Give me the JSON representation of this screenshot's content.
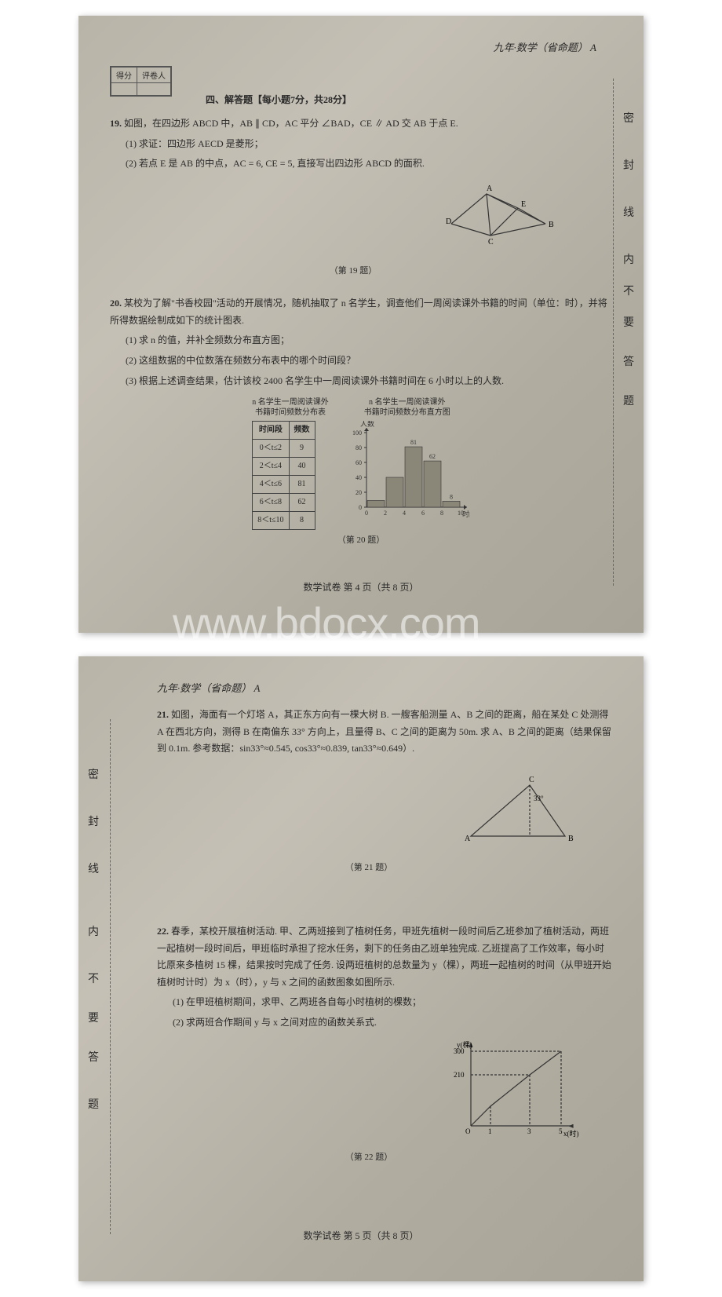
{
  "page1": {
    "header": "九年·数学（省命题）  A",
    "scorebox": {
      "c1": "得分",
      "c2": "评卷人"
    },
    "section_title": "四、解答题【每小题7分，共28分】",
    "q19": {
      "num": "19.",
      "text": "如图，在四边形 ABCD 中，AB ∥ CD，AC 平分 ∠BAD，CE ∥ AD 交 AB 于点 E.",
      "sub1": "(1) 求证：四边形 AECD 是菱形；",
      "sub2": "(2) 若点 E 是 AB 的中点，AC = 6, CE = 5, 直接写出四边形 ABCD 的面积.",
      "caption": "（第 19 题）",
      "figure": {
        "points": {
          "A": "A",
          "B": "B",
          "C": "C",
          "D": "D",
          "E": "E"
        }
      }
    },
    "q20": {
      "num": "20.",
      "text": "某校为了解\"书香校园\"活动的开展情况，随机抽取了 n 名学生，调查他们一周阅读课外书籍的时间（单位：时），并将所得数据绘制成如下的统计图表.",
      "sub1": "(1) 求 n 的值，并补全频数分布直方图；",
      "sub2": "(2) 这组数据的中位数落在频数分布表中的哪个时间段？",
      "sub3": "(3) 根据上述调查结果，估计该校 2400 名学生中一周阅读课外书籍时间在 6 小时以上的人数.",
      "table_title": "n 名学生一周阅读课外\n书籍时间频数分布表",
      "hist_title": "n 名学生一周阅读课外\n书籍时间频数分布直方图",
      "table": {
        "head": {
          "c1": "时间段",
          "c2": "频数"
        },
        "rows": [
          {
            "range": "0＜t≤2",
            "freq": "9"
          },
          {
            "range": "2＜t≤4",
            "freq": "40"
          },
          {
            "range": "4＜t≤6",
            "freq": "81"
          },
          {
            "range": "6＜t≤8",
            "freq": "62"
          },
          {
            "range": "8＜t≤10",
            "freq": "8"
          }
        ]
      },
      "histogram": {
        "y_label": "人数",
        "x_label": "时间",
        "y_ticks": [
          0,
          20,
          40,
          60,
          80,
          100
        ],
        "y_max": 100,
        "bars": [
          {
            "x": 1,
            "h": 9,
            "label": ""
          },
          {
            "x": 2,
            "h": 40,
            "label": ""
          },
          {
            "x": 3,
            "h": 81,
            "label": "81"
          },
          {
            "x": 4,
            "h": 62,
            "label": "62"
          },
          {
            "x": 5,
            "h": 8,
            "label": "8"
          }
        ],
        "x_ticks": [
          "0",
          "2",
          "4",
          "6",
          "8",
          "10"
        ],
        "bar_color": "#8a8678",
        "axis_color": "#333333"
      },
      "caption": "（第 20 题）"
    },
    "margins": {
      "m1": "密",
      "m2": "封",
      "m3": "线",
      "m4": "内",
      "m5": "不",
      "m6": "要",
      "m7": "答",
      "m8": "题"
    },
    "footer": "数学试卷  第 4 页（共 8 页）",
    "watermark": "www.bdocx.com"
  },
  "page2": {
    "header": "九年·数学（省命题）  A",
    "q21": {
      "num": "21.",
      "text": "如图，海面有一个灯塔 A，其正东方向有一棵大树 B. 一艘客船测量 A、B 之间的距离，船在某处 C 处测得 A 在西北方向，测得 B 在南偏东 33° 方向上，且量得 B、C 之间的距离为 50m. 求 A、B 之间的距离（结果保留到 0.1m. 参考数据：sin33°≈0.545, cos33°≈0.839, tan33°≈0.649）.",
      "caption": "（第 21 题）",
      "figure": {
        "A": "A",
        "B": "B",
        "C": "C",
        "angle": "33°"
      }
    },
    "q22": {
      "num": "22.",
      "text": "春季，某校开展植树活动. 甲、乙两班接到了植树任务，甲班先植树一段时间后乙班参加了植树活动，两班一起植树一段时间后，甲班临时承担了挖水任务，剩下的任务由乙班单独完成. 乙班提高了工作效率，每小时比原来多植树 15 棵，结果按时完成了任务. 设两班植树的总数量为 y（棵），两班一起植树的时间（从甲班开始植树时计时）为 x（时），y 与 x 之间的函数图象如图所示.",
      "sub1": "(1) 在甲班植树期间，求甲、乙两班各自每小时植树的棵数；",
      "sub2": "(2) 求两班合作期间 y 与 x 之间对应的函数关系式.",
      "caption": "（第 22 题）",
      "figure": {
        "y_label": "y(棵)",
        "x_label": "x(时)",
        "y_ticks": [
          210,
          300
        ],
        "x_ticks": [
          "O",
          "1",
          "3",
          "5"
        ],
        "line_color": "#333333"
      }
    },
    "margins": {
      "m1": "密",
      "m2": "封",
      "m3": "线",
      "m4": "内",
      "m5": "不",
      "m6": "要",
      "m7": "答",
      "m8": "题"
    },
    "footer": "数学试卷  第 5 页（共 8 页）"
  }
}
